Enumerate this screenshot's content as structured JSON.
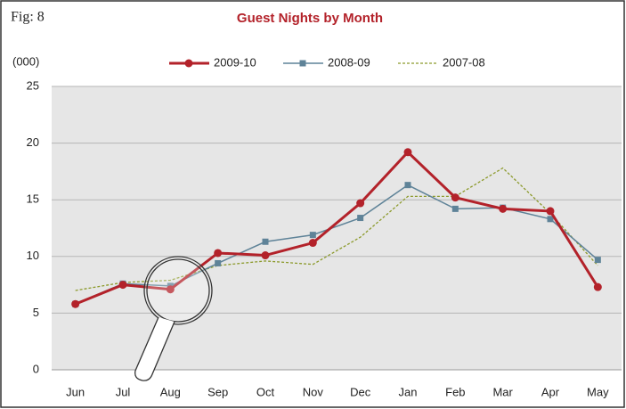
{
  "chart_data": {
    "type": "line",
    "figure_label": "Fig: 8",
    "title": "Guest Nights by Month",
    "y_label": "(000)",
    "categories": [
      "Jun",
      "Jul",
      "Aug",
      "Sep",
      "Oct",
      "Nov",
      "Dec",
      "Jan",
      "Feb",
      "Mar",
      "Apr",
      "May"
    ],
    "series": [
      {
        "name": "2009-10",
        "color": "#b3222a",
        "width": 3,
        "dash": "none",
        "marker": "circle",
        "values": [
          5.8,
          7.5,
          7.1,
          10.3,
          10.1,
          11.2,
          14.7,
          19.2,
          15.2,
          14.2,
          14.0,
          7.3
        ]
      },
      {
        "name": "2008-09",
        "color": "#5f8398",
        "width": 1.5,
        "dash": "none",
        "marker": "square",
        "values": [
          5.8,
          7.6,
          7.4,
          9.4,
          11.3,
          11.9,
          13.4,
          16.3,
          14.2,
          14.3,
          13.3,
          9.7
        ]
      },
      {
        "name": "2007-08",
        "color": "#8c9a2c",
        "width": 1.3,
        "dash": "3 2",
        "marker": "none",
        "values": [
          7.0,
          7.7,
          7.9,
          9.2,
          9.6,
          9.3,
          11.7,
          15.3,
          15.3,
          17.8,
          13.8,
          9.2
        ]
      }
    ],
    "ylim": [
      0,
      25
    ],
    "yticks": [
      0,
      5,
      10,
      15,
      20,
      25
    ],
    "grid": true,
    "legend": "top"
  }
}
